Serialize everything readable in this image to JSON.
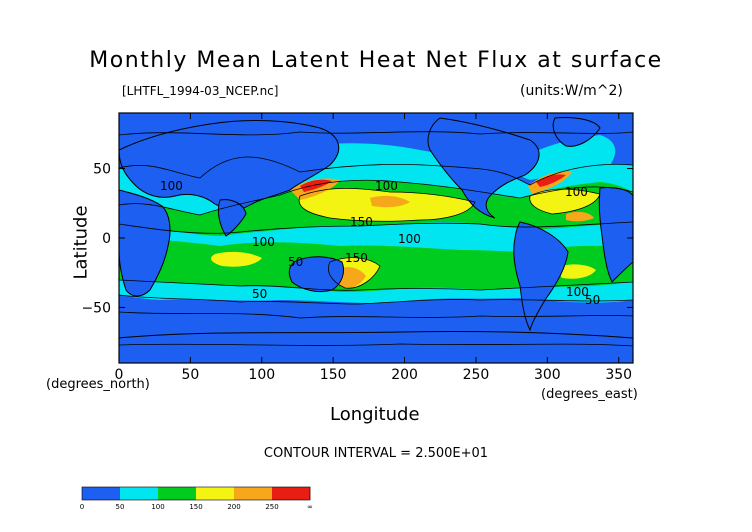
{
  "figure": {
    "title": "Monthly Mean Latent Heat Net Flux at surface",
    "file_label": "[LHTFL_1994-03_NCEP.nc]",
    "units_label": "(units:W/m^2)",
    "x_axis_label": "Longitude",
    "y_axis_label": "Latitude",
    "x_unit_label": "(degrees_east)",
    "y_unit_label": "(degrees_north)",
    "contour_interval_text": "CONTOUR INTERVAL = 2.500E+01"
  },
  "axes": {
    "x_ticks": [
      "0",
      "50",
      "100",
      "150",
      "200",
      "250",
      "300",
      "350"
    ],
    "y_ticks": [
      "50",
      "0",
      "−50"
    ],
    "x_range": [
      0,
      360
    ],
    "y_range": [
      -90,
      90
    ]
  },
  "contour_labels": [
    "100",
    "100",
    "150",
    "100",
    "100",
    "150",
    "50",
    "100",
    "50",
    "50",
    "100"
  ],
  "colorbar": {
    "ticks": [
      "0",
      "50",
      "100",
      "150",
      "200",
      "250",
      "∞"
    ],
    "colors": [
      "#1d5ff0",
      "#1d5ff0",
      "#00e5f0",
      "#00e5f0",
      "#00cc1f",
      "#00cc1f",
      "#f4f412",
      "#f4f412",
      "#f7a81a",
      "#f7a81a",
      "#e81e14",
      "#e81e14"
    ]
  },
  "colors": {
    "low": "#1d5ff0",
    "cyan": "#00e5f0",
    "green": "#00cc1f",
    "yellow": "#f4f412",
    "orange": "#f7a81a",
    "red": "#e81e14"
  }
}
